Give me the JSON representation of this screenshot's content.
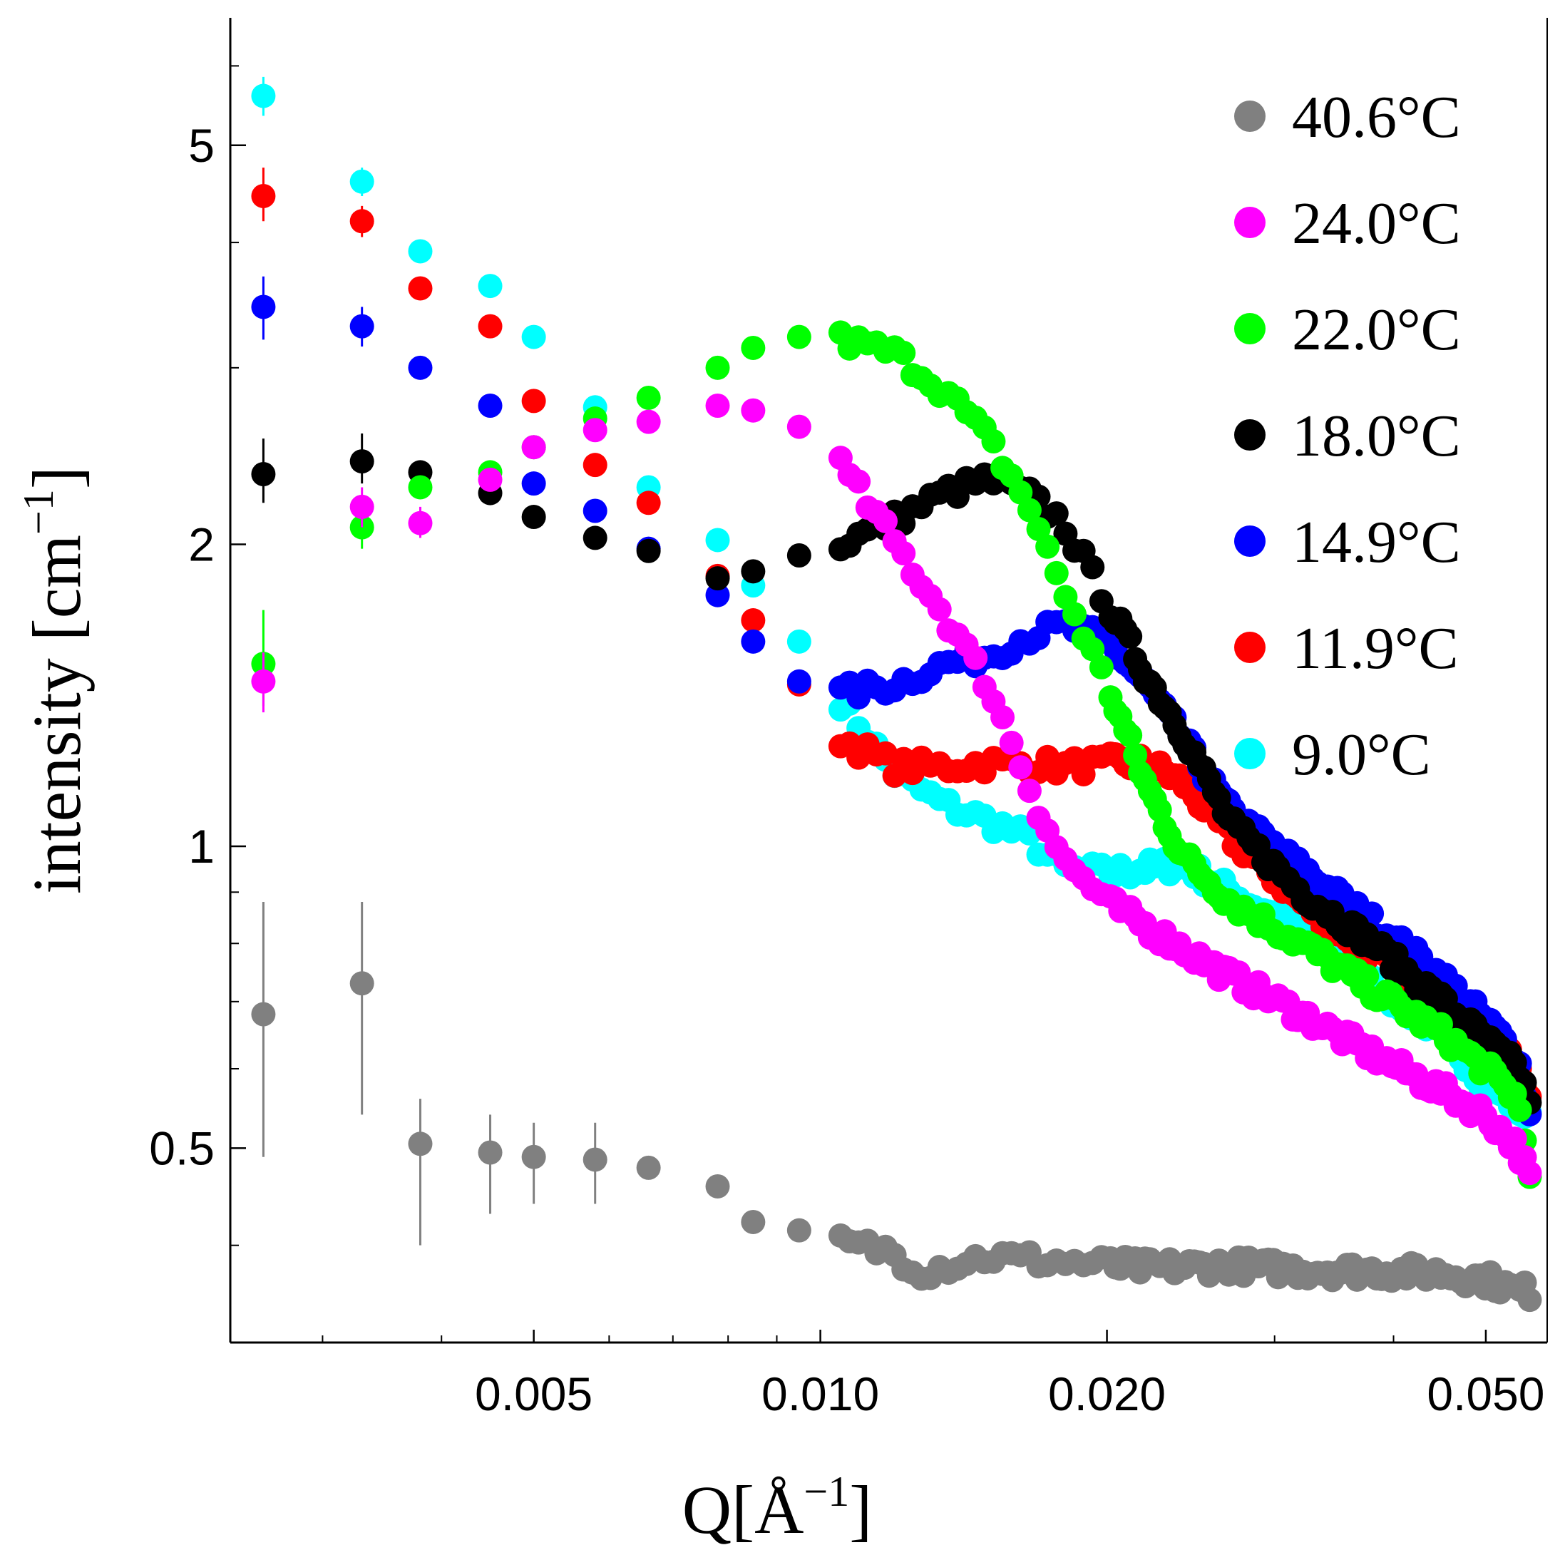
{
  "chart_data": {
    "type": "scatter",
    "title": "",
    "xlabel": "Q[Å⁻¹]",
    "xlabel_main": "Q[Å",
    "xlabel_sup": "−1",
    "xlabel_close": "]",
    "ylabel": "intensity [cm⁻¹]",
    "ylabel_main": "intensity [cm",
    "ylabel_sup": "−1",
    "ylabel_close": "]",
    "xscale": "log",
    "yscale": "log",
    "xlim": [
      0.0024,
      0.058
    ],
    "ylim": [
      0.32,
      6.7
    ],
    "x_major_ticks": [
      0.005,
      0.01,
      0.02,
      0.05
    ],
    "x_tick_labels": [
      "0.005",
      "0.010",
      "0.020",
      "0.050"
    ],
    "x_minor_ticks": [
      0.003,
      0.004,
      0.006,
      0.007,
      0.008,
      0.009,
      0.03,
      0.04
    ],
    "y_major_ticks": [
      0.5,
      1,
      2,
      5
    ],
    "y_tick_labels": [
      "0.5",
      "1",
      "2",
      "5"
    ],
    "y_minor_ticks": [
      0.4,
      0.6,
      0.7,
      0.8,
      0.9,
      3,
      4,
      6
    ],
    "legend_position": "top-right",
    "series": [
      {
        "name": "40.6°C",
        "color": "#808080",
        "anchors": [
          [
            0.0026,
            0.68
          ],
          [
            0.0033,
            0.73
          ],
          [
            0.0038,
            0.505
          ],
          [
            0.0045,
            0.495
          ],
          [
            0.005,
            0.49
          ],
          [
            0.0058,
            0.487
          ],
          [
            0.0066,
            0.478
          ],
          [
            0.0078,
            0.458
          ],
          [
            0.0085,
            0.422
          ],
          [
            0.0095,
            0.414
          ],
          [
            0.0105,
            0.402
          ],
          [
            0.0118,
            0.395
          ],
          [
            0.0128,
            0.377
          ],
          [
            0.015,
            0.39
          ],
          [
            0.018,
            0.385
          ],
          [
            0.022,
            0.38
          ],
          [
            0.027,
            0.382
          ],
          [
            0.032,
            0.378
          ],
          [
            0.038,
            0.377
          ],
          [
            0.045,
            0.375
          ],
          [
            0.05,
            0.37
          ],
          [
            0.054,
            0.36
          ],
          [
            0.056,
            0.36
          ]
        ],
        "errors": [
          [
            0.0026,
            0.49,
            0.88
          ],
          [
            0.0033,
            0.54,
            0.88
          ],
          [
            0.0038,
            0.4,
            0.56
          ],
          [
            0.0045,
            0.43,
            0.54
          ],
          [
            0.005,
            0.44,
            0.53
          ],
          [
            0.0058,
            0.44,
            0.53
          ]
        ]
      },
      {
        "name": "24.0°C",
        "color": "#ff00ff",
        "anchors": [
          [
            0.0026,
            1.46
          ],
          [
            0.0033,
            2.18
          ],
          [
            0.0038,
            2.1
          ],
          [
            0.0045,
            2.32
          ],
          [
            0.005,
            2.5
          ],
          [
            0.0058,
            2.6
          ],
          [
            0.0066,
            2.65
          ],
          [
            0.0078,
            2.75
          ],
          [
            0.0085,
            2.72
          ],
          [
            0.0095,
            2.62
          ],
          [
            0.0105,
            2.4
          ],
          [
            0.012,
            2.0
          ],
          [
            0.0135,
            1.7
          ],
          [
            0.015,
            1.45
          ],
          [
            0.016,
            1.25
          ],
          [
            0.017,
            1.08
          ],
          [
            0.018,
            0.97
          ],
          [
            0.02,
            0.88
          ],
          [
            0.023,
            0.81
          ],
          [
            0.027,
            0.74
          ],
          [
            0.032,
            0.68
          ],
          [
            0.038,
            0.62
          ],
          [
            0.045,
            0.57
          ],
          [
            0.05,
            0.54
          ],
          [
            0.054,
            0.5
          ],
          [
            0.056,
            0.46
          ]
        ],
        "errors": [
          [
            0.0026,
            1.36,
            1.56
          ],
          [
            0.0033,
            2.08,
            2.28
          ],
          [
            0.0038,
            2.03,
            2.18
          ]
        ]
      },
      {
        "name": "22.0°C",
        "color": "#00ff00",
        "anchors": [
          [
            0.0026,
            1.52
          ],
          [
            0.0033,
            2.08
          ],
          [
            0.0038,
            2.28
          ],
          [
            0.0045,
            2.36
          ],
          [
            0.005,
            2.5
          ],
          [
            0.0058,
            2.67
          ],
          [
            0.0066,
            2.8
          ],
          [
            0.0078,
            3.0
          ],
          [
            0.0085,
            3.14
          ],
          [
            0.0095,
            3.22
          ],
          [
            0.0105,
            3.2
          ],
          [
            0.012,
            3.1
          ],
          [
            0.0135,
            2.85
          ],
          [
            0.015,
            2.55
          ],
          [
            0.0165,
            2.2
          ],
          [
            0.018,
            1.8
          ],
          [
            0.02,
            1.45
          ],
          [
            0.022,
            1.15
          ],
          [
            0.024,
            0.98
          ],
          [
            0.027,
            0.88
          ],
          [
            0.032,
            0.8
          ],
          [
            0.038,
            0.72
          ],
          [
            0.045,
            0.65
          ],
          [
            0.05,
            0.6
          ],
          [
            0.054,
            0.56
          ],
          [
            0.056,
            0.46
          ]
        ],
        "errors": [
          [
            0.0026,
            1.38,
            1.72
          ],
          [
            0.0033,
            1.98,
            2.18
          ]
        ]
      },
      {
        "name": "18.0°C",
        "color": "#000000",
        "anchors": [
          [
            0.0026,
            2.35
          ],
          [
            0.0033,
            2.42
          ],
          [
            0.0038,
            2.36
          ],
          [
            0.0045,
            2.25
          ],
          [
            0.005,
            2.13
          ],
          [
            0.0058,
            2.03
          ],
          [
            0.0066,
            1.97
          ],
          [
            0.0078,
            1.85
          ],
          [
            0.0085,
            1.88
          ],
          [
            0.0095,
            1.95
          ],
          [
            0.0105,
            2.0
          ],
          [
            0.012,
            2.12
          ],
          [
            0.0135,
            2.25
          ],
          [
            0.015,
            2.32
          ],
          [
            0.0165,
            2.24
          ],
          [
            0.018,
            2.1
          ],
          [
            0.02,
            1.75
          ],
          [
            0.022,
            1.48
          ],
          [
            0.024,
            1.3
          ],
          [
            0.027,
            1.05
          ],
          [
            0.032,
            0.9
          ],
          [
            0.038,
            0.8
          ],
          [
            0.045,
            0.7
          ],
          [
            0.05,
            0.64
          ],
          [
            0.054,
            0.6
          ],
          [
            0.056,
            0.55
          ]
        ],
        "errors": [
          [
            0.0026,
            2.2,
            2.55
          ],
          [
            0.0033,
            2.3,
            2.58
          ]
        ]
      },
      {
        "name": "14.9°C",
        "color": "#0000ff",
        "anchors": [
          [
            0.0026,
            3.45
          ],
          [
            0.0033,
            3.3
          ],
          [
            0.0038,
            3.0
          ],
          [
            0.0045,
            2.75
          ],
          [
            0.005,
            2.3
          ],
          [
            0.0058,
            2.16
          ],
          [
            0.0066,
            1.98
          ],
          [
            0.0078,
            1.78
          ],
          [
            0.0085,
            1.6
          ],
          [
            0.0095,
            1.46
          ],
          [
            0.0105,
            1.42
          ],
          [
            0.012,
            1.45
          ],
          [
            0.0135,
            1.52
          ],
          [
            0.015,
            1.55
          ],
          [
            0.0165,
            1.62
          ],
          [
            0.018,
            1.66
          ],
          [
            0.02,
            1.6
          ],
          [
            0.022,
            1.45
          ],
          [
            0.024,
            1.28
          ],
          [
            0.027,
            1.08
          ],
          [
            0.032,
            0.95
          ],
          [
            0.038,
            0.84
          ],
          [
            0.045,
            0.74
          ],
          [
            0.05,
            0.67
          ],
          [
            0.054,
            0.62
          ],
          [
            0.056,
            0.52
          ]
        ],
        "errors": [
          [
            0.0026,
            3.2,
            3.7
          ],
          [
            0.0033,
            3.15,
            3.45
          ]
        ]
      },
      {
        "name": "11.9°C",
        "color": "#ff0000",
        "anchors": [
          [
            0.0026,
            4.45
          ],
          [
            0.0033,
            4.2
          ],
          [
            0.0038,
            3.6
          ],
          [
            0.0045,
            3.3
          ],
          [
            0.005,
            2.78
          ],
          [
            0.0058,
            2.4
          ],
          [
            0.0066,
            2.2
          ],
          [
            0.0078,
            1.86
          ],
          [
            0.0085,
            1.68
          ],
          [
            0.0095,
            1.45
          ],
          [
            0.0105,
            1.28
          ],
          [
            0.012,
            1.2
          ],
          [
            0.0135,
            1.2
          ],
          [
            0.015,
            1.21
          ],
          [
            0.0165,
            1.21
          ],
          [
            0.018,
            1.2
          ],
          [
            0.02,
            1.21
          ],
          [
            0.022,
            1.21
          ],
          [
            0.024,
            1.16
          ],
          [
            0.027,
            1.02
          ],
          [
            0.032,
            0.88
          ],
          [
            0.038,
            0.78
          ],
          [
            0.045,
            0.7
          ],
          [
            0.05,
            0.65
          ],
          [
            0.054,
            0.61
          ],
          [
            0.056,
            0.56
          ]
        ],
        "errors": [
          [
            0.0026,
            4.2,
            4.75
          ],
          [
            0.0033,
            4.05,
            4.35
          ]
        ]
      },
      {
        "name": "9.0°C",
        "color": "#00ffff",
        "anchors": [
          [
            0.0026,
            5.6
          ],
          [
            0.0033,
            4.6
          ],
          [
            0.0038,
            3.92
          ],
          [
            0.0045,
            3.62
          ],
          [
            0.005,
            3.22
          ],
          [
            0.0058,
            2.74
          ],
          [
            0.0066,
            2.28
          ],
          [
            0.0078,
            2.02
          ],
          [
            0.0085,
            1.82
          ],
          [
            0.0095,
            1.6
          ],
          [
            0.0105,
            1.4
          ],
          [
            0.012,
            1.18
          ],
          [
            0.0135,
            1.1
          ],
          [
            0.015,
            1.06
          ],
          [
            0.0165,
            1.02
          ],
          [
            0.018,
            0.95
          ],
          [
            0.02,
            0.94
          ],
          [
            0.022,
            0.95
          ],
          [
            0.024,
            0.96
          ],
          [
            0.027,
            0.9
          ],
          [
            0.032,
            0.82
          ],
          [
            0.038,
            0.73
          ],
          [
            0.045,
            0.65
          ],
          [
            0.05,
            0.58
          ],
          [
            0.054,
            0.55
          ],
          [
            0.056,
            0.53
          ]
        ],
        "errors": [
          [
            0.0026,
            5.35,
            5.85
          ],
          [
            0.0033,
            4.45,
            4.75
          ]
        ]
      }
    ]
  }
}
